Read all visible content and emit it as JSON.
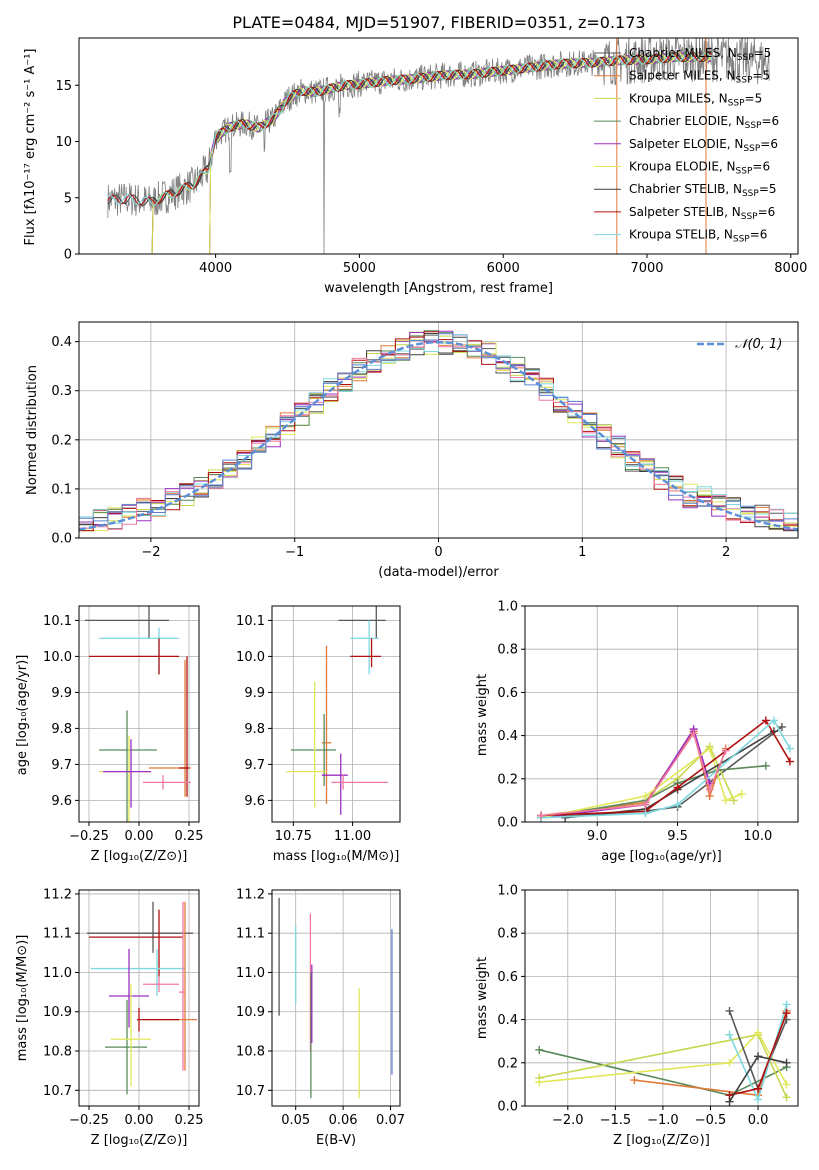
{
  "figure_title": "PLATE=0484, MJD=51907, FIBERID=0351, z=0.173",
  "colors": {
    "Chabrier MILES": "#595959",
    "Salpeter MILES": "#e07b39",
    "Kroupa MILES": "#c8d64e",
    "Chabrier ELODIE": "#5a8a5a",
    "Salpeter ELODIE": "#9b30c0",
    "Kroupa ELODIE": "#e0e85a",
    "Chabrier STELIB": "#404040",
    "Salpeter STELIB": "#b01010",
    "Kroupa STELIB": "#7fd8e0",
    "data": "#808080",
    "pink": "#f07aa0",
    "blue": "#5b7fd0",
    "gauss": "#5b8fd8"
  },
  "chart_data": [
    {
      "id": "spectrum",
      "type": "line",
      "title": "PLATE=0484, MJD=51907, FIBERID=0351, z=0.173",
      "xlabel": "wavelength [Angstrom, rest frame]",
      "ylabel": "Flux [fλ10⁻¹⁷ erg cm⁻² s⁻¹ A⁻¹]",
      "xlim": [
        3050,
        8050
      ],
      "ylim": [
        0,
        19.2
      ],
      "xticks": [
        4000,
        5000,
        6000,
        7000,
        8000
      ],
      "yticks": [
        0,
        5,
        10,
        15
      ],
      "grid": false,
      "legend_placement": "right",
      "legend": [
        "Chabrier MILES, N_SSP=5",
        "Salpeter MILES, N_SSP=5",
        "Kroupa MILES, N_SSP=5",
        "Chabrier ELODIE, N_SSP=6",
        "Salpeter ELODIE, N_SSP=6",
        "Kroupa ELODIE, N_SSP=6",
        "Chabrier STELIB, N_SSP=5",
        "Salpeter STELIB, N_SSP=6",
        "Kroupa STELIB, N_SSP=6"
      ],
      "continuum": {
        "x": [
          3250,
          3400,
          3550,
          3700,
          3850,
          3950,
          4000,
          4100,
          4200,
          4300,
          4400,
          4500,
          4600,
          4700,
          4800,
          4900,
          5000,
          5200,
          5400,
          5600,
          5800,
          6000,
          6200,
          6400,
          6600,
          6800,
          7000,
          7200,
          7400,
          7600,
          7800
        ],
        "y": [
          4.8,
          4.9,
          4.6,
          5.4,
          6.2,
          7.6,
          10.4,
          11.3,
          11.6,
          11.2,
          12.0,
          13.8,
          14.5,
          14.4,
          14.7,
          15.0,
          15.1,
          15.4,
          15.6,
          15.9,
          16.0,
          16.3,
          16.6,
          16.9,
          17.0,
          17.2,
          17.3,
          17.5,
          17.5,
          17.4,
          17.1
        ]
      }
    },
    {
      "id": "histogram",
      "type": "bar",
      "xlabel": "(data-model)/error",
      "ylabel": "Normed distribution",
      "xlim": [
        -2.5,
        2.5
      ],
      "ylim": [
        0,
        0.44
      ],
      "xticks": [
        -2,
        -1,
        0,
        1,
        2
      ],
      "yticks": [
        0.0,
        0.1,
        0.2,
        0.3,
        0.4
      ],
      "grid": true,
      "legend": [
        "𝒩(0, 1)"
      ],
      "legend_placement": "top-right",
      "bin_width": 0.1
    },
    {
      "id": "age_vs_Z",
      "type": "scatter",
      "xlabel": "Z [log₁₀(Z/Z⊙)]",
      "ylabel": "age  [log₁₀(age/yr)]",
      "xlim": [
        -0.3,
        0.3
      ],
      "ylim": [
        9.54,
        10.14
      ],
      "xticks": [
        -0.25,
        0.0,
        0.25
      ],
      "xticklabels": [
        "−0.25",
        "0.00",
        "0.25"
      ],
      "yticks": [
        9.6,
        9.7,
        9.8,
        9.9,
        10.0,
        10.1
      ],
      "grid": true,
      "points": [
        {
          "x": 0.05,
          "y": 10.1,
          "xerr": [
            0.32,
            0.1
          ],
          "yerr": [
            0.05,
            0.05
          ],
          "color": "Chabrier MILES"
        },
        {
          "x": 0.1,
          "y": 10.05,
          "xerr": [
            0.3,
            0.1
          ],
          "yerr": [
            0.1,
            0.03
          ],
          "color": "Kroupa STELIB"
        },
        {
          "x": 0.1,
          "y": 10.0,
          "xerr": [
            0.35,
            0.1
          ],
          "yerr": [
            0.05,
            0.05
          ],
          "color": "Salpeter STELIB"
        },
        {
          "x": 0.23,
          "y": 9.69,
          "xerr": [
            0.18,
            0.03
          ],
          "yerr": [
            0.08,
            0.3
          ],
          "color": "Salpeter MILES"
        },
        {
          "x": 0.24,
          "y": 9.69,
          "xerr": [
            0.04,
            0.01
          ],
          "yerr": [
            0.08,
            0.31
          ],
          "color": "Salpeter STELIB"
        },
        {
          "x": -0.06,
          "y": 9.74,
          "xerr": [
            0.14,
            0.15
          ],
          "yerr": [
            0.23,
            0.11
          ],
          "color": "Chabrier ELODIE"
        },
        {
          "x": -0.05,
          "y": 9.68,
          "xerr": [
            0.15,
            0.1
          ],
          "yerr": [
            0.25,
            0.1
          ],
          "color": "Kroupa ELODIE"
        },
        {
          "x": -0.04,
          "y": 9.68,
          "xerr": [
            0.14,
            0.1
          ],
          "yerr": [
            0.1,
            0.09
          ],
          "color": "Salpeter ELODIE"
        },
        {
          "x": 0.12,
          "y": 9.65,
          "xerr": [
            0.1,
            0.14
          ],
          "yerr": [
            0.02,
            0.02
          ],
          "color": "pink"
        }
      ]
    },
    {
      "id": "age_vs_mass",
      "type": "scatter",
      "xlabel": "mass [log₁₀(M/M⊙)]",
      "xlim": [
        10.66,
        11.2
      ],
      "ylim": [
        9.54,
        10.14
      ],
      "xticks": [
        10.75,
        11.0
      ],
      "yticks": [
        9.6,
        9.7,
        9.8,
        9.9,
        10.0,
        10.1
      ],
      "grid": true,
      "points": [
        {
          "x": 11.1,
          "y": 10.1,
          "xerr": [
            0.16,
            0.04
          ],
          "yerr": [
            0.05,
            0.05
          ],
          "color": "Chabrier MILES"
        },
        {
          "x": 11.07,
          "y": 10.05,
          "xerr": [
            0.08,
            0.04
          ],
          "yerr": [
            0.1,
            0.05
          ],
          "color": "Kroupa STELIB"
        },
        {
          "x": 11.08,
          "y": 10.0,
          "xerr": [
            0.09,
            0.04
          ],
          "yerr": [
            0.03,
            0.05
          ],
          "color": "Salpeter STELIB"
        },
        {
          "x": 10.89,
          "y": 9.76,
          "xerr": [
            0.02,
            0.02
          ],
          "yerr": [
            0.17,
            0.27
          ],
          "color": "Salpeter MILES"
        },
        {
          "x": 10.88,
          "y": 9.74,
          "xerr": [
            0.14,
            0.05
          ],
          "yerr": [
            0.1,
            0.1
          ],
          "color": "Chabrier ELODIE"
        },
        {
          "x": 10.84,
          "y": 9.68,
          "xerr": [
            0.12,
            0.05
          ],
          "yerr": [
            0.1,
            0.25
          ],
          "color": "Kroupa ELODIE"
        },
        {
          "x": 10.95,
          "y": 9.67,
          "xerr": [
            0.08,
            0.03
          ],
          "yerr": [
            0.11,
            0.06
          ],
          "color": "Salpeter ELODIE"
        },
        {
          "x": 10.96,
          "y": 9.65,
          "xerr": [
            0.05,
            0.19
          ],
          "yerr": [
            0.02,
            0.02
          ],
          "color": "pink"
        }
      ]
    },
    {
      "id": "weight_vs_age",
      "type": "line",
      "xlabel": "age  [log₁₀(age/yr)]",
      "ylabel": "mass weight",
      "xlim": [
        8.55,
        10.25
      ],
      "ylim": [
        0.0,
        1.0
      ],
      "xticks": [
        9.0,
        9.5,
        10.0
      ],
      "yticks": [
        0.0,
        0.2,
        0.4,
        0.6,
        0.8,
        1.0
      ],
      "grid": true,
      "series": [
        {
          "color": "Chabrier MILES",
          "x": [
            8.65,
            9.3,
            9.5,
            10.15
          ],
          "y": [
            0.02,
            0.05,
            0.07,
            0.44
          ]
        },
        {
          "color": "Salpeter MILES",
          "x": [
            8.65,
            9.3,
            9.6,
            9.7,
            9.8
          ],
          "y": [
            0.03,
            0.09,
            0.42,
            0.12,
            0.34
          ]
        },
        {
          "color": "Kroupa MILES",
          "x": [
            8.65,
            9.3,
            9.5,
            9.7,
            9.85
          ],
          "y": [
            0.02,
            0.1,
            0.2,
            0.35,
            0.1
          ]
        },
        {
          "color": "Chabrier ELODIE",
          "x": [
            8.65,
            9.3,
            9.5,
            9.75,
            10.05
          ],
          "y": [
            0.02,
            0.1,
            0.18,
            0.24,
            0.26
          ]
        },
        {
          "color": "Salpeter ELODIE",
          "x": [
            8.65,
            9.3,
            9.6,
            9.7
          ],
          "y": [
            0.02,
            0.08,
            0.43,
            0.18
          ]
        },
        {
          "color": "Kroupa ELODIE",
          "x": [
            8.65,
            9.3,
            9.7,
            9.8,
            9.9
          ],
          "y": [
            0.02,
            0.12,
            0.34,
            0.1,
            0.13
          ]
        },
        {
          "color": "Chabrier STELIB",
          "x": [
            8.8,
            9.3,
            9.5,
            10.1
          ],
          "y": [
            0.02,
            0.06,
            0.15,
            0.42
          ]
        },
        {
          "color": "Salpeter STELIB",
          "x": [
            8.65,
            9.3,
            9.5,
            10.05,
            10.2
          ],
          "y": [
            0.03,
            0.05,
            0.16,
            0.47,
            0.28
          ]
        },
        {
          "color": "Kroupa STELIB",
          "x": [
            8.65,
            9.3,
            9.5,
            10.1,
            10.2
          ],
          "y": [
            0.02,
            0.04,
            0.08,
            0.47,
            0.34
          ]
        },
        {
          "color": "pink",
          "x": [
            8.65,
            9.3,
            9.6,
            9.7,
            9.8
          ],
          "y": [
            0.03,
            0.08,
            0.41,
            0.15,
            0.33
          ]
        }
      ]
    },
    {
      "id": "mass_vs_Z",
      "type": "scatter",
      "xlabel": "Z [log₁₀(Z/Z⊙)]",
      "ylabel": "mass [log₁₀(M/M⊙)]",
      "xlim": [
        -0.3,
        0.3
      ],
      "ylim": [
        10.66,
        11.21
      ],
      "xticks": [
        -0.25,
        0.0,
        0.25
      ],
      "xticklabels": [
        "−0.25",
        "0.00",
        "0.25"
      ],
      "yticks": [
        10.7,
        10.8,
        10.9,
        11.0,
        11.1,
        11.2
      ],
      "grid": true,
      "points": [
        {
          "x": 0.07,
          "y": 11.1,
          "xerr": [
            0.33,
            0.2
          ],
          "yerr": [
            0.05,
            0.08
          ],
          "color": "Chabrier MILES"
        },
        {
          "x": 0.1,
          "y": 11.09,
          "xerr": [
            0.35,
            0.12
          ],
          "yerr": [
            0.1,
            0.07
          ],
          "color": "Salpeter STELIB"
        },
        {
          "x": 0.09,
          "y": 11.01,
          "xerr": [
            0.33,
            0.14
          ],
          "yerr": [
            0.07,
            0.05
          ],
          "color": "Kroupa STELIB"
        },
        {
          "x": 0.22,
          "y": 10.95,
          "xerr": [
            0.02,
            0.01
          ],
          "yerr": [
            0.2,
            0.23
          ],
          "color": "pink"
        },
        {
          "x": 0.23,
          "y": 10.88,
          "xerr": [
            0.21,
            0.06
          ],
          "yerr": [
            0.13,
            0.3
          ],
          "color": "Salpeter MILES"
        },
        {
          "x": 0.0,
          "y": 10.88,
          "xerr": [
            0.01,
            0.2
          ],
          "yerr": [
            0.03,
            0.03
          ],
          "color": "Salpeter STELIB"
        },
        {
          "x": -0.05,
          "y": 10.94,
          "xerr": [
            0.1,
            0.1
          ],
          "yerr": [
            0.08,
            0.12
          ],
          "color": "Salpeter ELODIE"
        },
        {
          "x": -0.06,
          "y": 10.81,
          "xerr": [
            0.11,
            0.1
          ],
          "yerr": [
            0.12,
            0.12
          ],
          "color": "Chabrier ELODIE"
        },
        {
          "x": -0.04,
          "y": 10.83,
          "xerr": [
            0.1,
            0.1
          ],
          "yerr": [
            0.12,
            0.14
          ],
          "color": "Kroupa ELODIE"
        },
        {
          "x": 0.1,
          "y": 10.97,
          "xerr": [
            0.08,
            0.1
          ],
          "yerr": [
            0.02,
            0.02
          ],
          "color": "pink"
        }
      ]
    },
    {
      "id": "mass_vs_ebv",
      "type": "scatter",
      "xlabel": "E(B-V)",
      "xlim": [
        0.045,
        0.072
      ],
      "ylim": [
        10.66,
        11.21
      ],
      "xticks": [
        0.05,
        0.06,
        0.07
      ],
      "yticks": [
        10.7,
        10.8,
        10.9,
        11.0,
        11.1,
        11.2
      ],
      "grid": true,
      "points": [
        {
          "x": 0.0465,
          "y": 11.04,
          "yerr": [
            0.15,
            0.15
          ],
          "color": "Chabrier MILES"
        },
        {
          "x": 0.05,
          "y": 11.02,
          "yerr": [
            0.1,
            0.1
          ],
          "color": "Kroupa STELIB"
        },
        {
          "x": 0.0531,
          "y": 11.0,
          "yerr": [
            0.2,
            0.15
          ],
          "color": "pink"
        },
        {
          "x": 0.0532,
          "y": 10.9,
          "yerr": [
            0.22,
            0.1
          ],
          "color": "Chabrier ELODIE"
        },
        {
          "x": 0.0534,
          "y": 10.94,
          "yerr": [
            0.12,
            0.08
          ],
          "color": "Salpeter ELODIE"
        },
        {
          "x": 0.0634,
          "y": 10.82,
          "yerr": [
            0.14,
            0.14
          ],
          "color": "Kroupa ELODIE"
        },
        {
          "x": 0.0703,
          "y": 10.93,
          "yerr": [
            0.19,
            0.18
          ],
          "color": "blue"
        }
      ]
    },
    {
      "id": "weight_vs_Z",
      "type": "line",
      "xlabel": "Z [log₁₀(Z/Z⊙)]",
      "ylabel": "mass weight",
      "xlim": [
        -2.45,
        0.42
      ],
      "ylim": [
        0.0,
        1.0
      ],
      "xticks": [
        -2.0,
        -1.5,
        -1.0,
        -0.5,
        0.0
      ],
      "xticklabels": [
        "−2.0",
        "−1.5",
        "−1.0",
        "−0.5",
        "0.0"
      ],
      "yticks": [
        0.0,
        0.2,
        0.4,
        0.6,
        0.8,
        1.0
      ],
      "grid": true,
      "series": [
        {
          "color": "Chabrier ELODIE",
          "x": [
            -2.3,
            -0.3,
            0.3
          ],
          "y": [
            0.26,
            0.05,
            0.18
          ]
        },
        {
          "color": "Kroupa MILES",
          "x": [
            -2.3,
            0.0,
            0.3
          ],
          "y": [
            0.13,
            0.33,
            0.04
          ]
        },
        {
          "color": "Kroupa ELODIE",
          "x": [
            -2.3,
            -0.3,
            0.0,
            0.3
          ],
          "y": [
            0.11,
            0.2,
            0.34,
            0.1
          ]
        },
        {
          "color": "Salpeter MILES",
          "x": [
            -1.3,
            0.0,
            0.3
          ],
          "y": [
            0.12,
            0.05,
            0.44
          ]
        },
        {
          "color": "Chabrier MILES",
          "x": [
            -0.3,
            0.0,
            0.3
          ],
          "y": [
            0.44,
            0.08,
            0.4
          ]
        },
        {
          "color": "Kroupa STELIB",
          "x": [
            -0.3,
            0.0,
            0.3
          ],
          "y": [
            0.33,
            0.03,
            0.47
          ]
        },
        {
          "color": "Salpeter STELIB",
          "x": [
            -0.3,
            0.0,
            0.3
          ],
          "y": [
            0.05,
            0.08,
            0.43
          ]
        },
        {
          "color": "Chabrier STELIB",
          "x": [
            -0.3,
            0.0,
            0.3
          ],
          "y": [
            0.02,
            0.23,
            0.2
          ]
        }
      ]
    }
  ]
}
